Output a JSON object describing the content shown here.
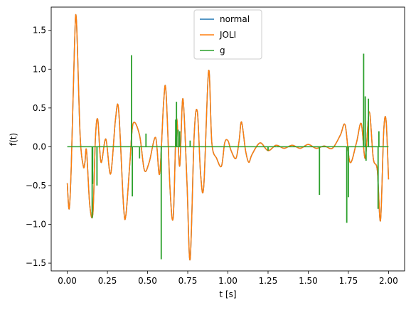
{
  "chart_data": {
    "type": "line",
    "title": "",
    "xlabel": "t [s]",
    "ylabel": "f(t)",
    "xlim": [
      -0.1,
      2.1
    ],
    "ylim": [
      -1.6,
      1.8
    ],
    "grid": false,
    "legend_position": "top-center",
    "x_ticks": [
      0.0,
      0.25,
      0.5,
      0.75,
      1.0,
      1.25,
      1.5,
      1.75,
      2.0
    ],
    "x_tick_labels": [
      "0.00",
      "0.25",
      "0.50",
      "0.75",
      "1.00",
      "1.25",
      "1.50",
      "1.75",
      "2.00"
    ],
    "y_ticks": [
      -1.5,
      -1.0,
      -0.5,
      0.0,
      0.5,
      1.0,
      1.5
    ],
    "y_tick_labels": [
      "−1.5",
      "−1.0",
      "−0.5",
      "0.0",
      "0.5",
      "1.0",
      "1.5"
    ],
    "series": [
      {
        "name": "normal",
        "color": "#1f77b4",
        "x": [
          0.0,
          0.012,
          0.025,
          0.045,
          0.057,
          0.08,
          0.1,
          0.11,
          0.12,
          0.14,
          0.16,
          0.175,
          0.19,
          0.21,
          0.24,
          0.27,
          0.3,
          0.32,
          0.35,
          0.365,
          0.39,
          0.41,
          0.45,
          0.48,
          0.51,
          0.55,
          0.575,
          0.6,
          0.615,
          0.64,
          0.66,
          0.68,
          0.7,
          0.72,
          0.745,
          0.765,
          0.79,
          0.81,
          0.83,
          0.85,
          0.88,
          0.9,
          0.93,
          0.96,
          0.98,
          1.0,
          1.02,
          1.05,
          1.07,
          1.085,
          1.11,
          1.13,
          1.15,
          1.2,
          1.25,
          1.3,
          1.35,
          1.4,
          1.45,
          1.5,
          1.55,
          1.6,
          1.65,
          1.7,
          1.73,
          1.76,
          1.8,
          1.83,
          1.855,
          1.88,
          1.905,
          1.93,
          1.95,
          1.97,
          1.985,
          2.0
        ],
        "y": [
          -0.47,
          -0.8,
          -0.25,
          1.3,
          1.63,
          0.15,
          -0.25,
          -0.2,
          -0.05,
          -0.75,
          -0.85,
          0.1,
          0.35,
          -0.2,
          0.1,
          -0.35,
          0.35,
          0.47,
          -0.75,
          -0.88,
          -0.2,
          0.3,
          0.15,
          -0.3,
          -0.2,
          0.12,
          -0.35,
          0.58,
          0.7,
          -0.55,
          -0.9,
          0.35,
          -0.25,
          0.62,
          -0.45,
          -1.45,
          0.15,
          0.45,
          -0.35,
          -0.5,
          0.98,
          0.05,
          -0.15,
          -0.25,
          0.05,
          0.08,
          -0.05,
          -0.15,
          0.08,
          0.32,
          -0.05,
          -0.2,
          -0.1,
          0.05,
          -0.05,
          0.02,
          -0.02,
          0.02,
          -0.02,
          0.03,
          -0.02,
          0.01,
          -0.02,
          0.15,
          0.28,
          -0.2,
          0.05,
          0.3,
          -0.15,
          0.45,
          -0.15,
          -0.3,
          -0.95,
          0.2,
          0.33,
          -0.42
        ]
      },
      {
        "name": "JOLI",
        "color": "#ff7f0e",
        "x": [
          0.0,
          0.012,
          0.025,
          0.045,
          0.057,
          0.08,
          0.1,
          0.11,
          0.12,
          0.14,
          0.16,
          0.175,
          0.19,
          0.21,
          0.24,
          0.27,
          0.3,
          0.32,
          0.35,
          0.365,
          0.39,
          0.41,
          0.45,
          0.48,
          0.51,
          0.55,
          0.575,
          0.6,
          0.615,
          0.64,
          0.66,
          0.68,
          0.7,
          0.72,
          0.745,
          0.765,
          0.79,
          0.81,
          0.83,
          0.85,
          0.88,
          0.9,
          0.93,
          0.96,
          0.98,
          1.0,
          1.02,
          1.05,
          1.07,
          1.085,
          1.11,
          1.13,
          1.15,
          1.2,
          1.25,
          1.3,
          1.35,
          1.4,
          1.45,
          1.5,
          1.55,
          1.6,
          1.65,
          1.7,
          1.73,
          1.76,
          1.8,
          1.83,
          1.855,
          1.88,
          1.905,
          1.93,
          1.95,
          1.97,
          1.985,
          2.0
        ],
        "y": [
          -0.47,
          -0.8,
          -0.25,
          1.3,
          1.63,
          0.15,
          -0.25,
          -0.2,
          -0.05,
          -0.75,
          -0.85,
          0.1,
          0.35,
          -0.2,
          0.1,
          -0.35,
          0.35,
          0.47,
          -0.75,
          -0.88,
          -0.2,
          0.3,
          0.15,
          -0.3,
          -0.2,
          0.12,
          -0.35,
          0.58,
          0.7,
          -0.55,
          -0.9,
          0.35,
          -0.25,
          0.62,
          -0.45,
          -1.45,
          0.15,
          0.45,
          -0.35,
          -0.5,
          0.98,
          0.05,
          -0.15,
          -0.25,
          0.05,
          0.08,
          -0.05,
          -0.15,
          0.08,
          0.32,
          -0.05,
          -0.2,
          -0.1,
          0.05,
          -0.05,
          0.02,
          -0.02,
          0.02,
          -0.02,
          0.03,
          -0.02,
          0.01,
          -0.02,
          0.15,
          0.28,
          -0.2,
          0.05,
          0.3,
          -0.15,
          0.45,
          -0.15,
          -0.3,
          -0.95,
          0.2,
          0.33,
          -0.42
        ]
      },
      {
        "name": "g",
        "color": "#2ca02c",
        "baseline": 0.0,
        "x_range": [
          0.0,
          2.0
        ],
        "spikes_x": [
          0.155,
          0.158,
          0.185,
          0.4,
          0.405,
          0.45,
          0.49,
          0.585,
          0.675,
          0.68,
          0.69,
          0.7,
          0.765,
          1.25,
          1.57,
          1.74,
          1.75,
          1.845,
          1.855,
          1.86,
          1.875,
          1.935,
          1.94
        ],
        "spikes_y": [
          -0.92,
          -0.48,
          -0.5,
          1.18,
          -0.64,
          -0.15,
          0.17,
          -1.45,
          0.35,
          0.58,
          0.22,
          0.2,
          0.08,
          -0.05,
          -0.62,
          -0.98,
          -0.65,
          1.2,
          0.65,
          -0.18,
          0.62,
          -0.8,
          0.2
        ]
      }
    ]
  }
}
